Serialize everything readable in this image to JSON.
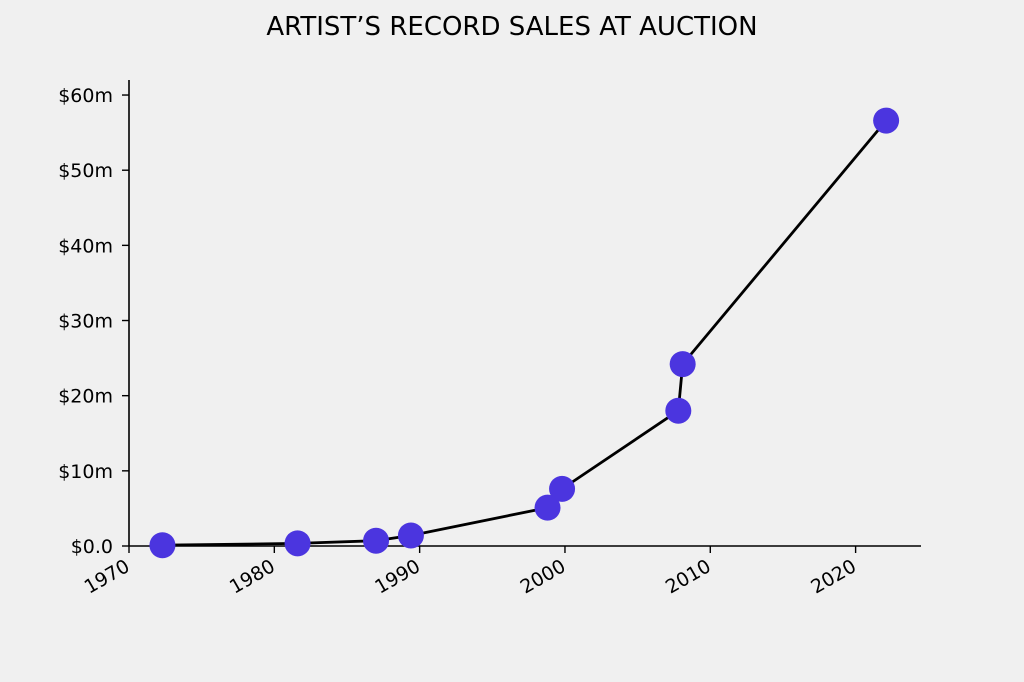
{
  "chart_data": {
    "type": "line",
    "title": "ARTIST’S RECORD SALES AT AUCTION",
    "xlabel": "",
    "ylabel": "",
    "xlim": [
      1970,
      2024.5
    ],
    "ylim": [
      0,
      62
    ],
    "x_ticks": [
      1970,
      1980,
      1990,
      2000,
      2010,
      2020
    ],
    "x_tick_labels": [
      "1970",
      "1980",
      "1990",
      "2000",
      "2010",
      "2020"
    ],
    "y_ticks": [
      0,
      10,
      20,
      30,
      40,
      50,
      60
    ],
    "y_tick_labels": [
      "$0.0",
      "$10m",
      "$20m",
      "$30m",
      "$40m",
      "$50m",
      "$60m"
    ],
    "grid": false,
    "series": [
      {
        "x": [
          1972.3,
          1981.6,
          1987.0,
          1989.4,
          1998.8,
          1999.8,
          2007.8,
          2008.1,
          2022.1
        ],
        "y": [
          0.1,
          0.35,
          0.7,
          1.4,
          5.1,
          7.6,
          18.0,
          24.2,
          56.6
        ]
      }
    ],
    "colors": {
      "marker": "#4b35df",
      "line": "#000000",
      "background": "#f0f0f0"
    }
  }
}
